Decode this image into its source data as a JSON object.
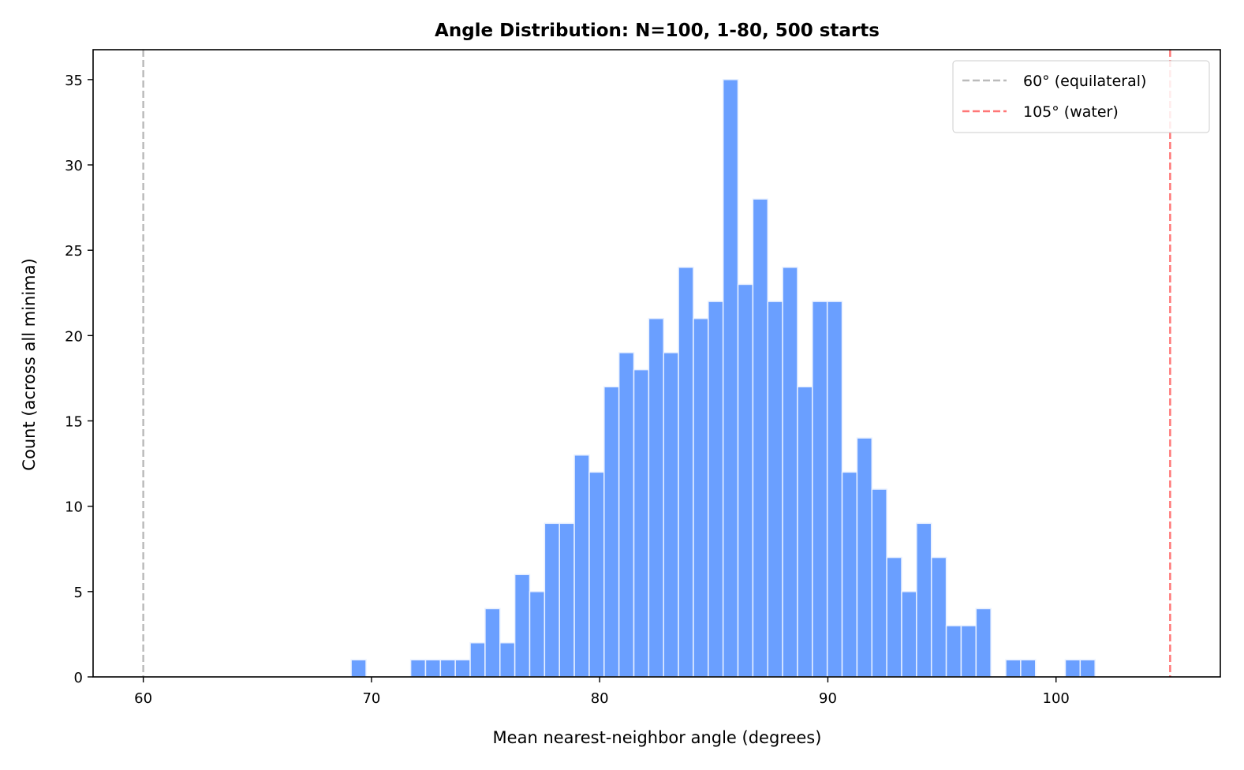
{
  "chart_data": {
    "type": "bar",
    "title": "Angle Distribution: N=100, 1-80, 500 starts",
    "xlabel": "Mean nearest-neighbor angle (degrees)",
    "ylabel": "Count (across all minima)",
    "xlim": [
      57.8,
      107.2
    ],
    "ylim": [
      0,
      36.75
    ],
    "xticks": [
      "60",
      "70",
      "80",
      "90",
      "100"
    ],
    "yticks": [
      "0",
      "5",
      "10",
      "15",
      "20",
      "25",
      "30",
      "35"
    ],
    "grid": false,
    "legend_position": "top-right",
    "bin_start": 69.11,
    "bin_width": 0.652,
    "counts": [
      1,
      0,
      0,
      0,
      1,
      1,
      1,
      1,
      2,
      4,
      2,
      6,
      5,
      9,
      9,
      13,
      12,
      17,
      19,
      18,
      21,
      19,
      24,
      21,
      22,
      35,
      23,
      28,
      22,
      24,
      17,
      22,
      22,
      12,
      14,
      11,
      7,
      5,
      9,
      7,
      3,
      3,
      4,
      0,
      1,
      1,
      0,
      0,
      1,
      1
    ],
    "bar_color": "#6a9fff",
    "reference_lines": [
      {
        "x": 60,
        "label": "60° (equilateral)",
        "color": "#bbbbbb"
      },
      {
        "x": 105,
        "label": "105° (water)",
        "color": "#ff7777"
      }
    ]
  }
}
